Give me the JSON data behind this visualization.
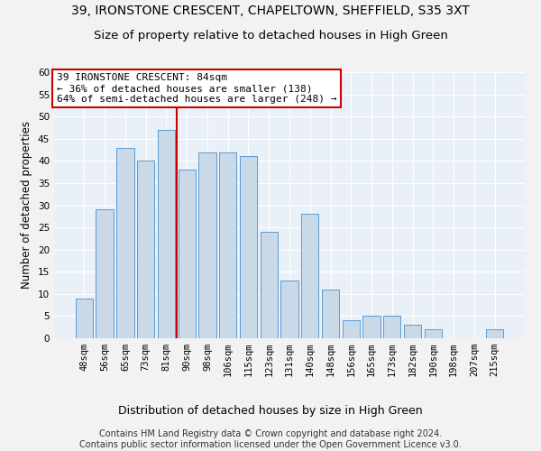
{
  "title": "39, IRONSTONE CRESCENT, CHAPELTOWN, SHEFFIELD, S35 3XT",
  "subtitle": "Size of property relative to detached houses in High Green",
  "xlabel": "Distribution of detached houses by size in High Green",
  "ylabel": "Number of detached properties",
  "bar_labels": [
    "48sqm",
    "56sqm",
    "65sqm",
    "73sqm",
    "81sqm",
    "90sqm",
    "98sqm",
    "106sqm",
    "115sqm",
    "123sqm",
    "131sqm",
    "140sqm",
    "148sqm",
    "156sqm",
    "165sqm",
    "173sqm",
    "182sqm",
    "190sqm",
    "198sqm",
    "207sqm",
    "215sqm"
  ],
  "bar_values": [
    9,
    29,
    43,
    40,
    47,
    38,
    42,
    42,
    41,
    24,
    13,
    28,
    11,
    4,
    5,
    5,
    3,
    2,
    0,
    0,
    2
  ],
  "bar_color": "#c9d9e8",
  "bar_edge_color": "#5b9bd5",
  "vline_x_index": 4,
  "vline_color": "#cc0000",
  "annotation_line1": "39 IRONSTONE CRESCENT: 84sqm",
  "annotation_line2": "← 36% of detached houses are smaller (138)",
  "annotation_line3": "64% of semi-detached houses are larger (248) →",
  "annotation_box_color": "#cc0000",
  "ylim": [
    0,
    60
  ],
  "yticks": [
    0,
    5,
    10,
    15,
    20,
    25,
    30,
    35,
    40,
    45,
    50,
    55,
    60
  ],
  "fig_bg_color": "#f2f2f2",
  "plot_bg_color": "#eaf0f7",
  "grid_color": "#ffffff",
  "title_fontsize": 10,
  "subtitle_fontsize": 9.5,
  "xlabel_fontsize": 9,
  "ylabel_fontsize": 8.5,
  "tick_fontsize": 7.5,
  "annotation_fontsize": 8,
  "footer_fontsize": 7,
  "footer_line1": "Contains HM Land Registry data © Crown copyright and database right 2024.",
  "footer_line2": "Contains public sector information licensed under the Open Government Licence v3.0."
}
